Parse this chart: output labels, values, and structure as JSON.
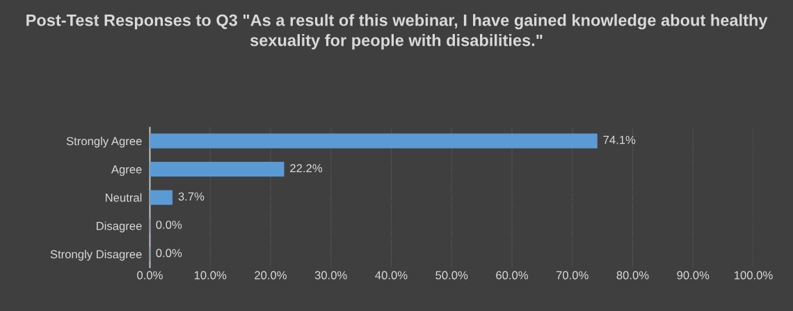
{
  "chart_data": {
    "type": "bar",
    "orientation": "horizontal",
    "title": "Post-Test Responses to Q3 \"As a result of this webinar, I have gained knowledge about healthy sexuality for people with disabilities.\"",
    "categories": [
      "Strongly Agree",
      "Agree",
      "Neutral",
      "Disagree",
      "Strongly Disagree"
    ],
    "values": [
      74.1,
      22.2,
      3.7,
      0.0,
      0.0
    ],
    "value_labels": [
      "74.1%",
      "22.2%",
      "3.7%",
      "0.0%",
      "0.0%"
    ],
    "color": "#5b9bd5",
    "xlim": [
      0,
      100
    ],
    "xticks": [
      {
        "value": 0,
        "label": "0.0%"
      },
      {
        "value": 10,
        "label": "10.0%"
      },
      {
        "value": 20,
        "label": "20.0%"
      },
      {
        "value": 30,
        "label": "30.0%"
      },
      {
        "value": 40,
        "label": "40.0%"
      },
      {
        "value": 50,
        "label": "50.0%"
      },
      {
        "value": 60,
        "label": "60.0%"
      },
      {
        "value": 70,
        "label": "70.0%"
      },
      {
        "value": 80,
        "label": "80.0%"
      },
      {
        "value": 90,
        "label": "90.0%"
      },
      {
        "value": 100,
        "label": "100.0%"
      }
    ],
    "grid": "x",
    "legend": false
  }
}
